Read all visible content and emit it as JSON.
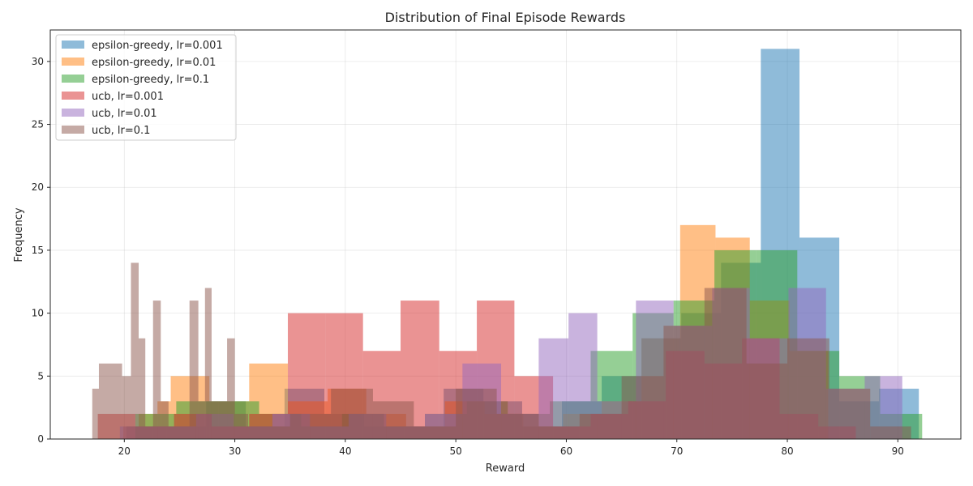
{
  "chart_data": {
    "type": "bar",
    "subtype": "overlapping-histogram",
    "title": "Distribution of Final Episode Rewards",
    "xlabel": "Reward",
    "ylabel": "Frequency",
    "xlim": [
      13.3,
      95.7
    ],
    "ylim": [
      0,
      32.5
    ],
    "xticks": [
      20,
      30,
      40,
      50,
      60,
      70,
      80,
      90
    ],
    "yticks": [
      0,
      5,
      10,
      15,
      20,
      25,
      30
    ],
    "grid": true,
    "legend_position": "top-left",
    "bar_opacity": 0.5,
    "series": [
      {
        "name": "epsilon-greedy, lr=0.001",
        "color": "#1f77b4",
        "bins": [
          [
            20.2,
            23.8,
            1
          ],
          [
            23.8,
            27.4,
            1
          ],
          [
            27.4,
            31.0,
            3
          ],
          [
            31.0,
            34.5,
            1
          ],
          [
            34.5,
            38.1,
            4
          ],
          [
            38.1,
            41.7,
            2
          ],
          [
            41.7,
            45.3,
            1
          ],
          [
            45.3,
            48.9,
            1
          ],
          [
            48.9,
            52.5,
            4
          ],
          [
            52.5,
            56.0,
            3
          ],
          [
            56.0,
            59.6,
            1
          ],
          [
            59.6,
            63.2,
            3
          ],
          [
            63.2,
            66.8,
            5
          ],
          [
            66.8,
            70.4,
            8
          ],
          [
            70.4,
            74.0,
            10
          ],
          [
            74.0,
            77.6,
            14
          ],
          [
            77.6,
            81.1,
            31
          ],
          [
            81.1,
            84.7,
            16
          ],
          [
            84.7,
            88.3,
            3
          ],
          [
            88.3,
            91.9,
            4
          ]
        ]
      },
      {
        "name": "epsilon-greedy, lr=0.01",
        "color": "#ff7f0e",
        "bins": [
          [
            19.9,
            21.3,
            1
          ],
          [
            21.3,
            23.0,
            2
          ],
          [
            23.0,
            24.2,
            3
          ],
          [
            24.2,
            27.7,
            5
          ],
          [
            27.7,
            31.3,
            3
          ],
          [
            31.3,
            34.8,
            6
          ],
          [
            34.8,
            38.4,
            3
          ],
          [
            38.4,
            41.9,
            4
          ],
          [
            41.9,
            45.5,
            2
          ],
          [
            45.5,
            49.0,
            1
          ],
          [
            49.0,
            52.6,
            3
          ],
          [
            52.6,
            56.1,
            2
          ],
          [
            56.1,
            59.7,
            1
          ],
          [
            59.7,
            63.2,
            2
          ],
          [
            63.2,
            66.8,
            3
          ],
          [
            66.8,
            70.3,
            8
          ],
          [
            70.3,
            73.5,
            17
          ],
          [
            73.5,
            76.6,
            16
          ],
          [
            76.6,
            80.2,
            11
          ],
          [
            80.2,
            83.7,
            7
          ]
        ]
      },
      {
        "name": "epsilon-greedy, lr=0.1",
        "color": "#2ca02c",
        "bins": [
          [
            21.0,
            24.7,
            2
          ],
          [
            24.7,
            28.5,
            3
          ],
          [
            28.5,
            32.2,
            3
          ],
          [
            32.2,
            36.0,
            2
          ],
          [
            36.0,
            39.7,
            1
          ],
          [
            39.7,
            43.5,
            2
          ],
          [
            43.5,
            47.2,
            1
          ],
          [
            47.2,
            51.0,
            2
          ],
          [
            51.0,
            54.7,
            3
          ],
          [
            54.7,
            58.5,
            2
          ],
          [
            58.5,
            62.2,
            3
          ],
          [
            62.2,
            66.0,
            7
          ],
          [
            66.0,
            69.7,
            10
          ],
          [
            69.7,
            73.4,
            11
          ],
          [
            73.4,
            77.2,
            15
          ],
          [
            77.2,
            80.9,
            15
          ],
          [
            80.9,
            84.7,
            7
          ],
          [
            84.7,
            88.4,
            5
          ],
          [
            88.4,
            92.2,
            2
          ]
        ]
      },
      {
        "name": "ucb, lr=0.001",
        "color": "#d62728",
        "bins": [
          [
            17.6,
            21.0,
            2
          ],
          [
            21.0,
            24.5,
            1
          ],
          [
            24.5,
            27.9,
            2
          ],
          [
            27.9,
            31.3,
            1
          ],
          [
            31.3,
            34.8,
            2
          ],
          [
            34.8,
            38.2,
            10
          ],
          [
            38.2,
            41.6,
            10
          ],
          [
            41.6,
            45.0,
            7
          ],
          [
            45.0,
            48.5,
            11
          ],
          [
            48.5,
            51.9,
            7
          ],
          [
            51.9,
            55.3,
            11
          ],
          [
            55.3,
            58.8,
            5
          ],
          [
            58.8,
            62.2,
            1
          ],
          [
            62.2,
            65.6,
            2
          ],
          [
            65.6,
            69.0,
            3
          ],
          [
            69.0,
            72.5,
            7
          ],
          [
            72.5,
            75.9,
            6
          ],
          [
            75.9,
            79.3,
            8
          ],
          [
            79.3,
            82.8,
            2
          ],
          [
            82.8,
            86.2,
            1
          ]
        ]
      },
      {
        "name": "ucb, lr=0.01",
        "color": "#9467bd",
        "bins": [
          [
            19.6,
            23.0,
            1
          ],
          [
            23.0,
            26.5,
            1
          ],
          [
            26.5,
            29.9,
            2
          ],
          [
            29.9,
            33.4,
            1
          ],
          [
            33.4,
            36.8,
            2
          ],
          [
            36.8,
            40.3,
            1
          ],
          [
            40.3,
            43.7,
            2
          ],
          [
            43.7,
            47.2,
            1
          ],
          [
            47.2,
            50.6,
            2
          ],
          [
            50.6,
            54.1,
            6
          ],
          [
            54.1,
            57.5,
            2
          ],
          [
            57.5,
            60.2,
            8
          ],
          [
            60.2,
            62.8,
            10
          ],
          [
            62.8,
            66.3,
            3
          ],
          [
            66.3,
            69.7,
            11
          ],
          [
            69.7,
            73.2,
            9
          ],
          [
            73.2,
            76.6,
            12
          ],
          [
            76.6,
            80.1,
            8
          ],
          [
            80.1,
            83.5,
            12
          ],
          [
            83.5,
            87.0,
            4
          ],
          [
            87.0,
            90.4,
            5
          ]
        ]
      },
      {
        "name": "ucb, lr=0.1",
        "color": "#8c564b",
        "bins": [
          [
            17.1,
            17.7,
            4
          ],
          [
            17.7,
            19.8,
            6
          ],
          [
            19.8,
            20.6,
            5
          ],
          [
            20.6,
            21.3,
            14
          ],
          [
            21.3,
            21.9,
            8
          ],
          [
            21.9,
            22.6,
            1
          ],
          [
            22.6,
            23.3,
            11
          ],
          [
            23.3,
            24.0,
            3
          ],
          [
            24.0,
            25.9,
            1
          ],
          [
            25.9,
            26.7,
            11
          ],
          [
            26.7,
            27.3,
            3
          ],
          [
            27.3,
            27.9,
            12
          ],
          [
            27.9,
            29.3,
            3
          ],
          [
            29.3,
            30.0,
            8
          ],
          [
            30.0,
            31.2,
            2
          ],
          [
            31.2,
            35.0,
            1
          ],
          [
            35.0,
            38.7,
            2
          ],
          [
            38.7,
            42.5,
            4
          ],
          [
            42.5,
            46.2,
            3
          ],
          [
            46.2,
            50.0,
            1
          ],
          [
            50.0,
            53.7,
            4
          ],
          [
            53.7,
            57.5,
            2
          ],
          [
            57.5,
            61.2,
            1
          ],
          [
            61.2,
            65.0,
            2
          ],
          [
            65.0,
            68.8,
            5
          ],
          [
            68.8,
            72.5,
            9
          ],
          [
            72.5,
            76.3,
            12
          ],
          [
            76.3,
            80.0,
            6
          ],
          [
            80.0,
            83.8,
            8
          ],
          [
            83.8,
            87.5,
            4
          ],
          [
            87.5,
            91.2,
            1
          ]
        ]
      }
    ]
  }
}
